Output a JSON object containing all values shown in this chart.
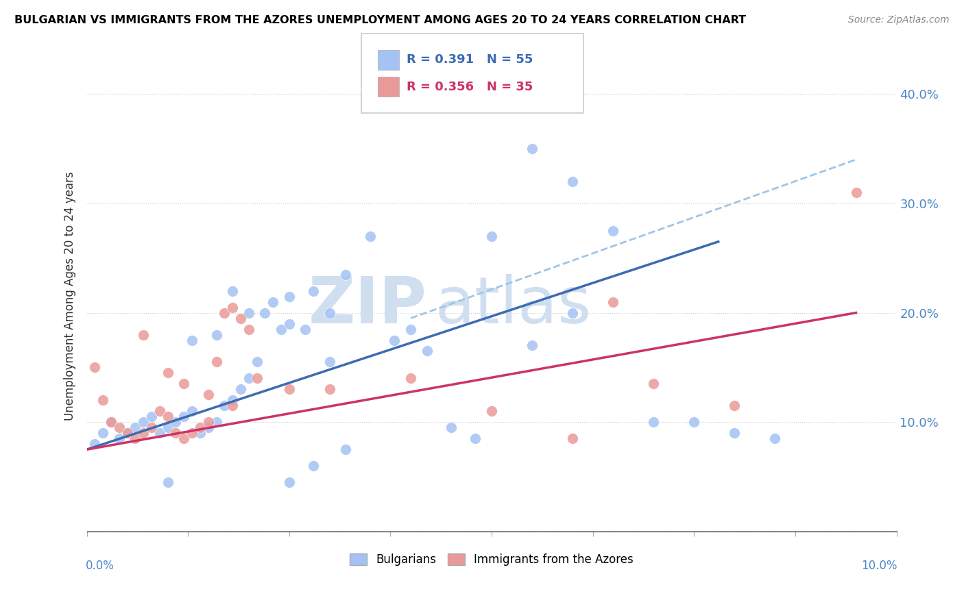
{
  "title": "BULGARIAN VS IMMIGRANTS FROM THE AZORES UNEMPLOYMENT AMONG AGES 20 TO 24 YEARS CORRELATION CHART",
  "source": "Source: ZipAtlas.com",
  "ylabel": "Unemployment Among Ages 20 to 24 years",
  "ytick_labels": [
    "",
    "10.0%",
    "20.0%",
    "30.0%",
    "40.0%"
  ],
  "ytick_vals": [
    0.0,
    0.1,
    0.2,
    0.3,
    0.4
  ],
  "xlim": [
    0.0,
    0.1
  ],
  "ylim": [
    0.0,
    0.43
  ],
  "legend_blue_r": "0.391",
  "legend_blue_n": "55",
  "legend_pink_r": "0.356",
  "legend_pink_n": "35",
  "blue_color": "#a4c2f4",
  "pink_color": "#ea9999",
  "blue_line_color": "#3d6bb3",
  "pink_line_color": "#cc3366",
  "dashed_line_color": "#9fc5e8",
  "watermark_zip_color": "#d0dff0",
  "watermark_atlas_color": "#d0dff0",
  "blue_x": [
    0.001,
    0.002,
    0.003,
    0.004,
    0.005,
    0.006,
    0.007,
    0.008,
    0.009,
    0.01,
    0.011,
    0.012,
    0.013,
    0.014,
    0.015,
    0.016,
    0.017,
    0.018,
    0.019,
    0.02,
    0.021,
    0.022,
    0.023,
    0.024,
    0.013,
    0.016,
    0.018,
    0.02,
    0.025,
    0.025,
    0.027,
    0.028,
    0.03,
    0.032,
    0.035,
    0.038,
    0.04,
    0.042,
    0.045,
    0.048,
    0.05,
    0.055,
    0.06,
    0.065,
    0.07,
    0.075,
    0.08,
    0.085,
    0.055,
    0.06,
    0.03,
    0.025,
    0.028,
    0.032,
    0.01
  ],
  "blue_y": [
    0.08,
    0.09,
    0.1,
    0.085,
    0.09,
    0.095,
    0.1,
    0.105,
    0.09,
    0.095,
    0.1,
    0.105,
    0.11,
    0.09,
    0.095,
    0.1,
    0.115,
    0.12,
    0.13,
    0.14,
    0.155,
    0.2,
    0.21,
    0.185,
    0.175,
    0.18,
    0.22,
    0.2,
    0.19,
    0.215,
    0.185,
    0.22,
    0.2,
    0.235,
    0.27,
    0.175,
    0.185,
    0.165,
    0.095,
    0.085,
    0.27,
    0.35,
    0.32,
    0.275,
    0.1,
    0.1,
    0.09,
    0.085,
    0.17,
    0.2,
    0.155,
    0.045,
    0.06,
    0.075,
    0.045
  ],
  "pink_x": [
    0.001,
    0.002,
    0.003,
    0.004,
    0.005,
    0.006,
    0.007,
    0.008,
    0.009,
    0.01,
    0.011,
    0.012,
    0.013,
    0.014,
    0.015,
    0.016,
    0.017,
    0.018,
    0.019,
    0.02,
    0.007,
    0.01,
    0.012,
    0.015,
    0.018,
    0.021,
    0.025,
    0.03,
    0.04,
    0.05,
    0.06,
    0.07,
    0.08,
    0.065,
    0.095
  ],
  "pink_y": [
    0.15,
    0.12,
    0.1,
    0.095,
    0.09,
    0.085,
    0.09,
    0.095,
    0.11,
    0.105,
    0.09,
    0.085,
    0.09,
    0.095,
    0.1,
    0.155,
    0.2,
    0.205,
    0.195,
    0.185,
    0.18,
    0.145,
    0.135,
    0.125,
    0.115,
    0.14,
    0.13,
    0.13,
    0.14,
    0.11,
    0.085,
    0.135,
    0.115,
    0.21,
    0.31
  ],
  "blue_line_x0": 0.0,
  "blue_line_y0": 0.075,
  "blue_line_x1": 0.078,
  "blue_line_y1": 0.265,
  "pink_line_x0": 0.0,
  "pink_line_y0": 0.075,
  "pink_line_x1": 0.095,
  "pink_line_y1": 0.2,
  "dashed_line_x0": 0.04,
  "dashed_line_y0": 0.195,
  "dashed_line_x1": 0.095,
  "dashed_line_y1": 0.34
}
